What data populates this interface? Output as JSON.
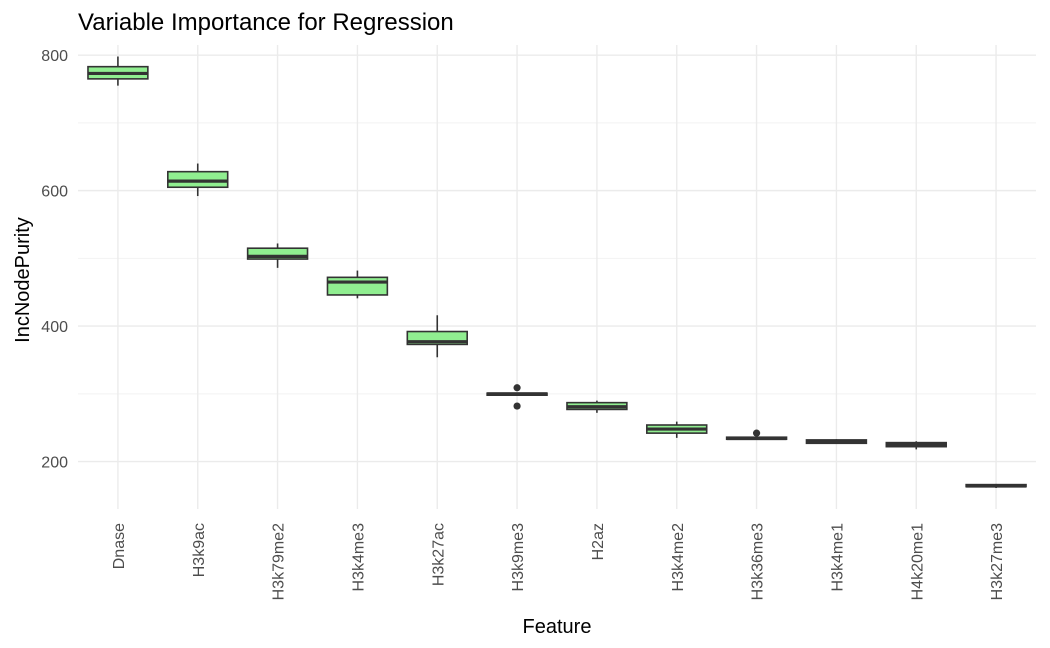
{
  "chart_data": {
    "type": "boxplot",
    "title": "Variable Importance for Regression",
    "xlabel": "Feature",
    "ylabel": "IncNodePurity",
    "ylim": [
      130,
      815
    ],
    "yticks": [
      200,
      400,
      600,
      800
    ],
    "grid": true,
    "box_color": "#90EE90",
    "line_color": "#333333",
    "categories": [
      "Dnase",
      "H3k9ac",
      "H3k79me2",
      "H3k4me3",
      "H3k27ac",
      "H3k9me3",
      "H2az",
      "H3k4me2",
      "H3k36me3",
      "H3k4me1",
      "H4k20me1",
      "H3k27me3"
    ],
    "boxes": [
      {
        "min": 755,
        "q1": 765,
        "median": 773,
        "q3": 783,
        "max": 798,
        "outliers": []
      },
      {
        "min": 592,
        "q1": 605,
        "median": 614,
        "q3": 628,
        "max": 640,
        "outliers": []
      },
      {
        "min": 486,
        "q1": 499,
        "median": 503,
        "q3": 515,
        "max": 522,
        "outliers": []
      },
      {
        "min": 441,
        "q1": 446,
        "median": 465,
        "q3": 472,
        "max": 482,
        "outliers": []
      },
      {
        "min": 354,
        "q1": 373,
        "median": 377,
        "q3": 392,
        "max": 416,
        "outliers": []
      },
      {
        "min": 297,
        "q1": 298,
        "median": 300,
        "q3": 301,
        "max": 302,
        "outliers": [
          309,
          282
        ]
      },
      {
        "min": 272,
        "q1": 277,
        "median": 281,
        "q3": 287,
        "max": 290,
        "outliers": []
      },
      {
        "min": 235,
        "q1": 242,
        "median": 248,
        "q3": 254,
        "max": 259,
        "outliers": []
      },
      {
        "min": 233,
        "q1": 233,
        "median": 234,
        "q3": 236,
        "max": 237,
        "outliers": [
          242
        ]
      },
      {
        "min": 226,
        "q1": 227,
        "median": 229,
        "q3": 232,
        "max": 233,
        "outliers": []
      },
      {
        "min": 218,
        "q1": 222,
        "median": 225,
        "q3": 228,
        "max": 230,
        "outliers": []
      },
      {
        "min": 161,
        "q1": 163,
        "median": 164,
        "q3": 166,
        "max": 167,
        "outliers": []
      }
    ]
  }
}
